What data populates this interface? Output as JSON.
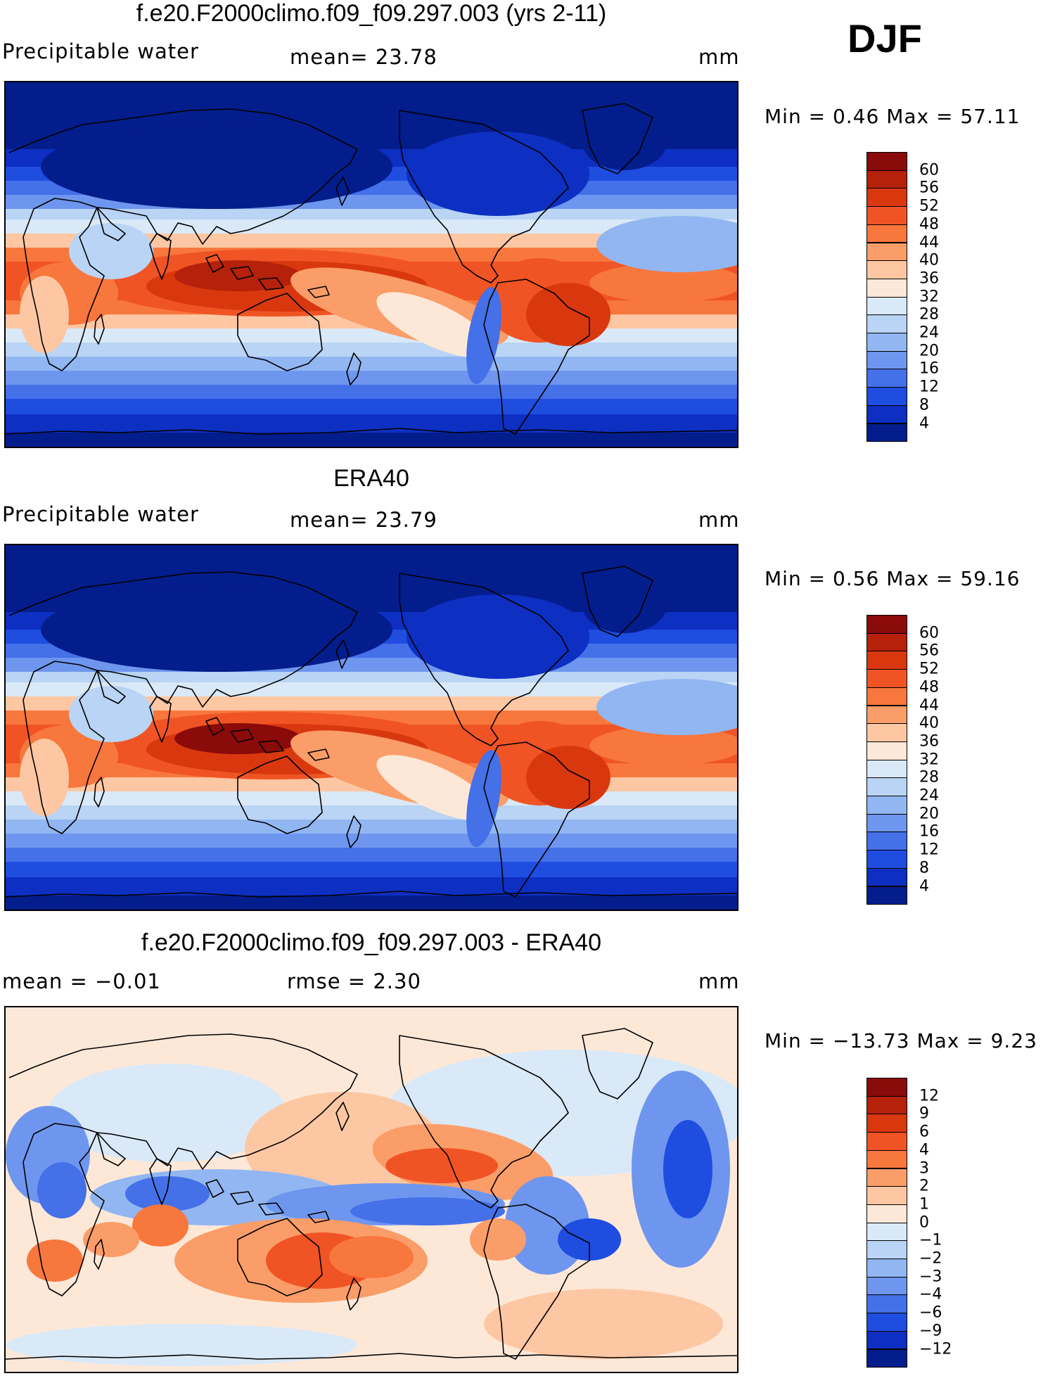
{
  "season": "DJF",
  "panels": [
    {
      "title": "f.e20.F2000climo.f09_f09.297.003 (yrs 2-11)",
      "left_label": "Precipitable  water",
      "center_label": "mean=   23.78",
      "units": "mm",
      "minmax": "Min  =     0.46  Max  =    57.11",
      "colorbar_ticks": [
        "60",
        "56",
        "52",
        "48",
        "44",
        "40",
        "36",
        "32",
        "28",
        "24",
        "20",
        "16",
        "12",
        "8",
        "4"
      ],
      "colorbar_colors": [
        "#8b0a0a",
        "#b5210a",
        "#d9380f",
        "#f05424",
        "#f8773d",
        "#fb9d68",
        "#fdc7a3",
        "#fde8d8",
        "#dae9f7",
        "#b9d4f4",
        "#91b6f2",
        "#6f96ee",
        "#4470e8",
        "#1e4de0",
        "#0d2fc2",
        "#041d8c"
      ],
      "chart_data": {
        "type": "heatmap",
        "title": "f.e20.F2000climo.f09_f09.297.003 (yrs 2-11)",
        "variable": "Precipitable water",
        "units": "mm",
        "mean": 23.78,
        "min": 0.46,
        "max": 57.11,
        "colorbar_levels": [
          4,
          8,
          12,
          16,
          20,
          24,
          28,
          32,
          36,
          40,
          44,
          48,
          52,
          56,
          60
        ]
      }
    },
    {
      "title": "ERA40",
      "left_label": "Precipitable  water",
      "center_label": "mean=   23.79",
      "units": "mm",
      "minmax": "Min  =     0.56  Max  =    59.16",
      "colorbar_ticks": [
        "60",
        "56",
        "52",
        "48",
        "44",
        "40",
        "36",
        "32",
        "28",
        "24",
        "20",
        "16",
        "12",
        "8",
        "4"
      ],
      "colorbar_colors": [
        "#8b0a0a",
        "#b5210a",
        "#d9380f",
        "#f05424",
        "#f8773d",
        "#fb9d68",
        "#fdc7a3",
        "#fde8d8",
        "#dae9f7",
        "#b9d4f4",
        "#91b6f2",
        "#6f96ee",
        "#4470e8",
        "#1e4de0",
        "#0d2fc2",
        "#041d8c"
      ],
      "chart_data": {
        "type": "heatmap",
        "title": "ERA40",
        "variable": "Precipitable water",
        "units": "mm",
        "mean": 23.79,
        "min": 0.56,
        "max": 59.16,
        "colorbar_levels": [
          4,
          8,
          12,
          16,
          20,
          24,
          28,
          32,
          36,
          40,
          44,
          48,
          52,
          56,
          60
        ]
      }
    },
    {
      "title": "f.e20.F2000climo.f09_f09.297.003 - ERA40",
      "left_label": "mean  =    −0.01",
      "center_label": "rmse  =     2.30",
      "units": "mm",
      "minmax": "Min  = −13.73  Max  =      9.23",
      "colorbar_ticks": [
        "12",
        "9",
        "6",
        "4",
        "3",
        "2",
        "1",
        "0",
        "−1",
        "−2",
        "−3",
        "−4",
        "−6",
        "−9",
        "−12"
      ],
      "colorbar_colors": [
        "#8b0a0a",
        "#b5210a",
        "#d9380f",
        "#f05424",
        "#f8773d",
        "#fb9d68",
        "#fdc7a3",
        "#fde8d8",
        "#dae9f7",
        "#b9d4f4",
        "#91b6f2",
        "#6f96ee",
        "#4470e8",
        "#1e4de0",
        "#0d2fc2",
        "#041d8c"
      ],
      "chart_data": {
        "type": "heatmap",
        "title": "f.e20.F2000climo.f09_f09.297.003 - ERA40",
        "units": "mm",
        "mean": -0.01,
        "rmse": 2.3,
        "min": -13.73,
        "max": 9.23,
        "colorbar_levels": [
          -12,
          -9,
          -6,
          -4,
          -3,
          -2,
          -1,
          0,
          1,
          2,
          3,
          4,
          6,
          9,
          12
        ]
      }
    }
  ]
}
